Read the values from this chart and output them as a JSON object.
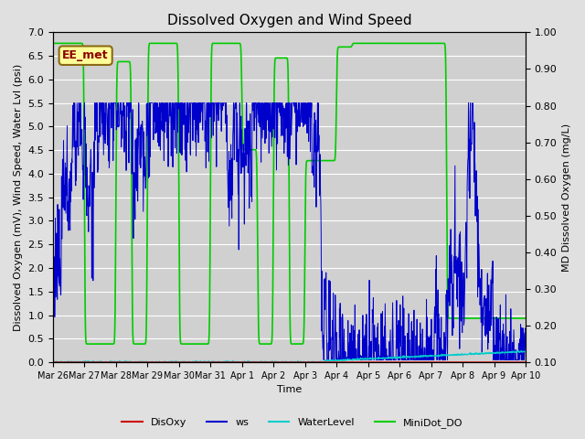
{
  "title": "Dissolved Oxygen and Wind Speed",
  "xlabel": "Time",
  "ylabel_left": "Dissolved Oxygen (mV), Wind Speed, Water Lvl (psi)",
  "ylabel_right": "MD Dissolved Oxygen (mg/L)",
  "ylim_left": [
    0.0,
    7.0
  ],
  "ylim_right": [
    0.1,
    1.0
  ],
  "yticks_left": [
    0.0,
    0.5,
    1.0,
    1.5,
    2.0,
    2.5,
    3.0,
    3.5,
    4.0,
    4.5,
    5.0,
    5.5,
    6.0,
    6.5,
    7.0
  ],
  "yticks_right": [
    0.1,
    0.2,
    0.3,
    0.4,
    0.5,
    0.6,
    0.7,
    0.8,
    0.9,
    1.0
  ],
  "fig_bg": "#e0e0e0",
  "plot_bg": "#d0d0d0",
  "grid_color": "#ffffff",
  "legend_colors": [
    "#cc0000",
    "#0000cc",
    "#00cccc",
    "#00cc00"
  ],
  "ann_text": "EE_met",
  "ann_color": "#8b0000",
  "ann_bg": "#ffff99",
  "ann_border": "#8b6914",
  "title_fontsize": 11,
  "label_fontsize": 8,
  "tick_fontsize": 8,
  "xtick_labels": [
    "Mar 26",
    "Mar 27",
    "Mar 28",
    "Mar 29",
    "Mar 30",
    "Mar 31",
    "Apr 1",
    "Apr 2",
    "Apr 3",
    "Apr 4",
    "Apr 5",
    "Apr 6",
    "Apr 7",
    "Apr 8",
    "Apr 9",
    "Apr 10"
  ]
}
